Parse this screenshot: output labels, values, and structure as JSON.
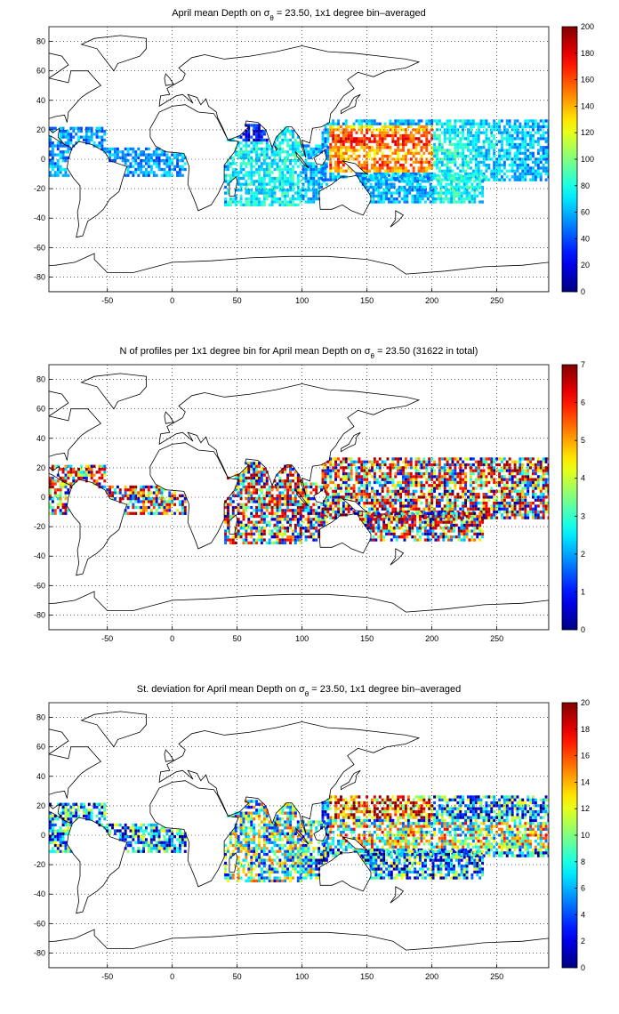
{
  "chart_data": [
    {
      "type": "heatmap",
      "title_prefix": "April mean Depth on ",
      "title_symbol": "σ",
      "title_subscript": "θ",
      "title_suffix": " = 23.50, 1x1 degree bin–averaged",
      "xticks": [
        "-50",
        "0",
        "50",
        "100",
        "150",
        "200",
        "250"
      ],
      "yticks": [
        "80",
        "60",
        "40",
        "20",
        "0",
        "-20",
        "-40",
        "-60",
        "-80"
      ],
      "xlim": [
        -95,
        290
      ],
      "ylim": [
        -90,
        90
      ],
      "colorbar_ticks": [
        "200",
        "180",
        "160",
        "140",
        "120",
        "100",
        "80",
        "60",
        "40",
        "20",
        "0"
      ],
      "colorbar_range": [
        0,
        200
      ],
      "grid": true,
      "colormap": "jet",
      "land_outline_color": "#000000"
    },
    {
      "type": "heatmap",
      "title_prefix": "N of profiles per 1x1 degree bin for April mean Depth on ",
      "title_symbol": "σ",
      "title_subscript": "θ",
      "title_suffix": " = 23.50 (31622 in total)",
      "xticks": [
        "-50",
        "0",
        "50",
        "100",
        "150",
        "200",
        "250"
      ],
      "yticks": [
        "80",
        "60",
        "40",
        "20",
        "0",
        "-20",
        "-40",
        "-60",
        "-80"
      ],
      "xlim": [
        -95,
        290
      ],
      "ylim": [
        -90,
        90
      ],
      "colorbar_ticks": [
        "7",
        "6",
        "5",
        "4",
        "3",
        "2",
        "1",
        "0"
      ],
      "colorbar_range": [
        0,
        7
      ],
      "grid": true,
      "colormap": "jet",
      "land_outline_color": "#000000"
    },
    {
      "type": "heatmap",
      "title_prefix": "St. deviation for April mean Depth on ",
      "title_symbol": "σ",
      "title_subscript": "θ",
      "title_suffix": " = 23.50, 1x1 degree bin–averaged",
      "xticks": [
        "-50",
        "0",
        "50",
        "100",
        "150",
        "200",
        "250"
      ],
      "yticks": [
        "80",
        "60",
        "40",
        "20",
        "0",
        "-20",
        "-40",
        "-60",
        "-80"
      ],
      "xlim": [
        -95,
        290
      ],
      "ylim": [
        -90,
        90
      ],
      "colorbar_ticks": [
        "20",
        "18",
        "16",
        "14",
        "12",
        "10",
        "8",
        "6",
        "4",
        "2",
        "0"
      ],
      "colorbar_range": [
        0,
        20
      ],
      "grid": true,
      "colormap": "jet",
      "land_outline_color": "#000000"
    }
  ]
}
